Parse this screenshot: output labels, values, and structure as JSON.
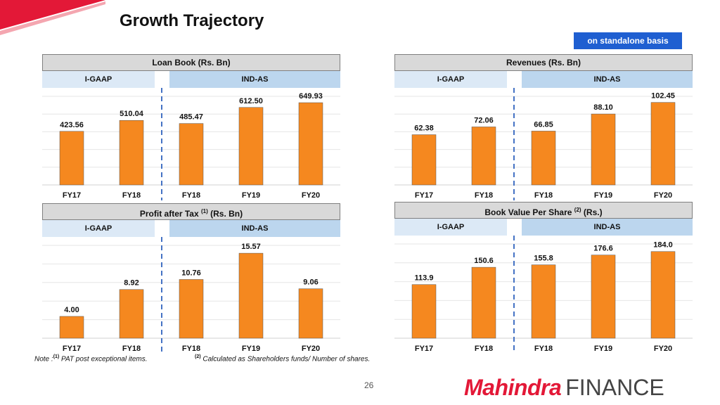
{
  "title": "Growth Trajectory",
  "basis_label": "on standalone basis",
  "colors": {
    "bar": "#f5881f",
    "divider": "#4472c4",
    "basis_bg": "#1f5fd1",
    "brand_red": "#e31837"
  },
  "gaap_labels": {
    "igaap": "I-GAAP",
    "indas": "IND-AS"
  },
  "chart_data": [
    {
      "type": "bar",
      "title": "Loan Book (Rs. Bn)",
      "categories": [
        "FY17",
        "FY18",
        "FY18",
        "FY19",
        "FY20"
      ],
      "values": [
        423.56,
        510.04,
        485.47,
        612.5,
        649.93
      ],
      "labels": [
        "423.56",
        "510.04",
        "485.47",
        "612.50",
        "649.93"
      ],
      "ylim": [
        0,
        700
      ],
      "grid": true
    },
    {
      "type": "bar",
      "title": "Revenues (Rs. Bn)",
      "categories": [
        "FY17",
        "FY18",
        "FY18",
        "FY19",
        "FY20"
      ],
      "values": [
        62.38,
        72.06,
        66.85,
        88.1,
        102.45
      ],
      "labels": [
        "62.38",
        "72.06",
        "66.85",
        "88.10",
        "102.45"
      ],
      "ylim": [
        0,
        110
      ],
      "grid": true
    },
    {
      "type": "bar",
      "title_pre": "Profit after Tax",
      "title_sup": "(1)",
      "title_post": "(Rs. Bn)",
      "categories": [
        "FY17",
        "FY18",
        "FY18",
        "FY19",
        "FY20"
      ],
      "values": [
        4.0,
        8.92,
        10.76,
        15.57,
        9.06
      ],
      "labels": [
        "4.00",
        "8.92",
        "10.76",
        "15.57",
        "9.06"
      ],
      "ylim": [
        0,
        17
      ],
      "grid": true
    },
    {
      "type": "bar",
      "title_pre": "Book Value Per Share",
      "title_sup": "(2)",
      "title_post": "(Rs.)",
      "categories": [
        "FY17",
        "FY18",
        "FY18",
        "FY19",
        "FY20"
      ],
      "values": [
        113.9,
        150.6,
        155.8,
        176.6,
        184.0
      ],
      "labels": [
        "113.9",
        "150.6",
        "155.8",
        "176.6",
        "184.0"
      ],
      "ylim": [
        0,
        200
      ],
      "grid": true
    }
  ],
  "notes": {
    "note_prefix": "Note :",
    "sup1": "(1)",
    "text1": "PAT post exceptional items.",
    "sup2": "(2)",
    "text2": "Calculated as Shareholders funds/ Number of shares."
  },
  "page_number": "26",
  "logo": {
    "mahindra": "Mahindra",
    "finance": "FINANCE"
  }
}
